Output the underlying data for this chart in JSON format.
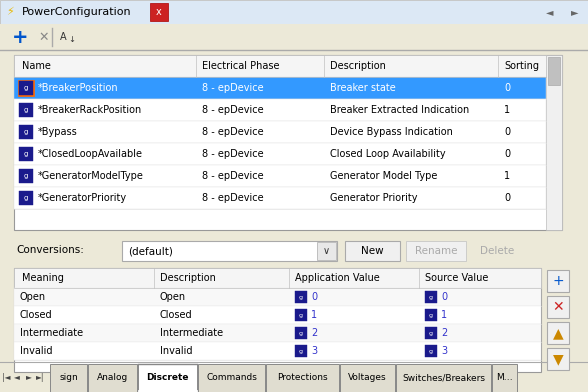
{
  "title": "PowerConfiguration",
  "bg_color": "#ece9d8",
  "panel_bg": "#ffffff",
  "toolbar_bg": "#ece9d8",
  "top_table": {
    "headers": [
      "Name",
      "Electrical Phase",
      "Description",
      "Sorting"
    ],
    "rows": [
      {
        "name": "*BreakerPosition",
        "phase": "8 - epDevice",
        "desc": "Breaker state",
        "sort": "0",
        "selected": true
      },
      {
        "name": "*BreakerRackPosition",
        "phase": "8 - epDevice",
        "desc": "Breaker Extracted Indication",
        "sort": "1",
        "selected": false
      },
      {
        "name": "*Bypass",
        "phase": "8 - epDevice",
        "desc": "Device Bypass Indication",
        "sort": "0",
        "selected": false
      },
      {
        "name": "*ClosedLoopAvailable",
        "phase": "8 - epDevice",
        "desc": "Closed Loop Availability",
        "sort": "0",
        "selected": false
      },
      {
        "name": "*GeneratorModelType",
        "phase": "8 - epDevice",
        "desc": "Generator Model Type",
        "sort": "1",
        "selected": false
      },
      {
        "name": "*GeneratorPriority",
        "phase": "8 - epDevice",
        "desc": "Generator Priority",
        "sort": "0",
        "selected": false
      }
    ]
  },
  "bottom_table": {
    "headers": [
      "Meaning",
      "Description",
      "Application Value",
      "Source Value"
    ],
    "rows": [
      {
        "meaning": "Open",
        "desc": "Open",
        "app_val": "0",
        "src_val": "0"
      },
      {
        "meaning": "Closed",
        "desc": "Closed",
        "app_val": "1",
        "src_val": "1"
      },
      {
        "meaning": "Intermediate",
        "desc": "Intermediate",
        "app_val": "2",
        "src_val": "2"
      },
      {
        "meaning": "Invalid",
        "desc": "Invalid",
        "app_val": "3",
        "src_val": "3"
      }
    ]
  },
  "tabs": [
    "sign",
    "Analog",
    "Discrete",
    "Commands",
    "Protections",
    "Voltages",
    "Switches/Breakers",
    "M…"
  ],
  "active_tab": "Discrete",
  "selected_row_color": "#3399ff",
  "selected_text_color": "#ffffff",
  "icon_dark_color": "#1a1a8c",
  "blue_g_color": "#3333cc",
  "title_bar_color": "#d4e4f0",
  "close_btn_color": "#cc0000",
  "scrollbar_color": "#c8c8c8"
}
